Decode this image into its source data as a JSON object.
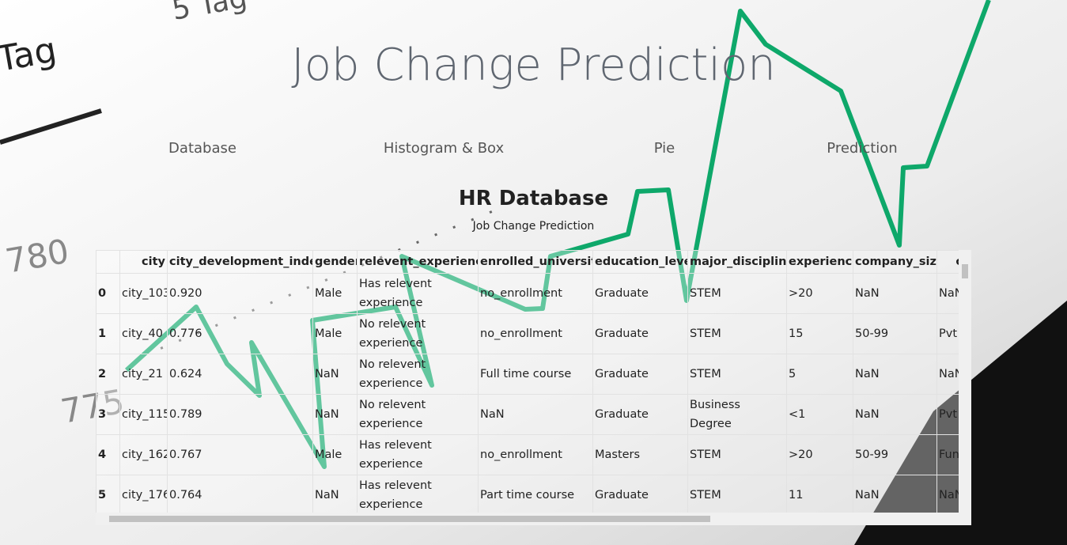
{
  "header": {
    "title": "Job Change Prediction"
  },
  "nav": [
    "Database",
    "Histogram & Box",
    "Pie",
    "Prediction"
  ],
  "section": {
    "title": "HR Database",
    "subtitle": "Job Change Prediction"
  },
  "table": {
    "columns": [
      "city",
      "city_development_index",
      "gender",
      "relevent_experience",
      "enrolled_university",
      "education_level",
      "major_discipline",
      "experience",
      "company_size",
      "com"
    ],
    "rows": [
      {
        "index": "0",
        "cells": [
          "city_103",
          "0.920",
          "Male",
          "Has relevent experience",
          "no_enrollment",
          "Graduate",
          "STEM",
          ">20",
          "NaN",
          "NaN"
        ]
      },
      {
        "index": "1",
        "cells": [
          "city_40",
          "0.776",
          "Male",
          "No relevent experience",
          "no_enrollment",
          "Graduate",
          "STEM",
          "15",
          "50-99",
          "Pvt"
        ]
      },
      {
        "index": "2",
        "cells": [
          "city_21",
          "0.624",
          "NaN",
          "No relevent experience",
          "Full time course",
          "Graduate",
          "STEM",
          "5",
          "NaN",
          "NaN"
        ]
      },
      {
        "index": "3",
        "cells": [
          "city_115",
          "0.789",
          "NaN",
          "No relevent experience",
          "NaN",
          "Graduate",
          "Business Degree",
          "<1",
          "NaN",
          "Pvt"
        ]
      },
      {
        "index": "4",
        "cells": [
          "city_162",
          "0.767",
          "Male",
          "Has relevent experience",
          "no_enrollment",
          "Masters",
          "STEM",
          ">20",
          "50-99",
          "Fun"
        ]
      },
      {
        "index": "5",
        "cells": [
          "city_176",
          "0.764",
          "NaN",
          "Has relevent experience",
          "Part time course",
          "Graduate",
          "STEM",
          "11",
          "NaN",
          "NaN"
        ]
      }
    ]
  }
}
